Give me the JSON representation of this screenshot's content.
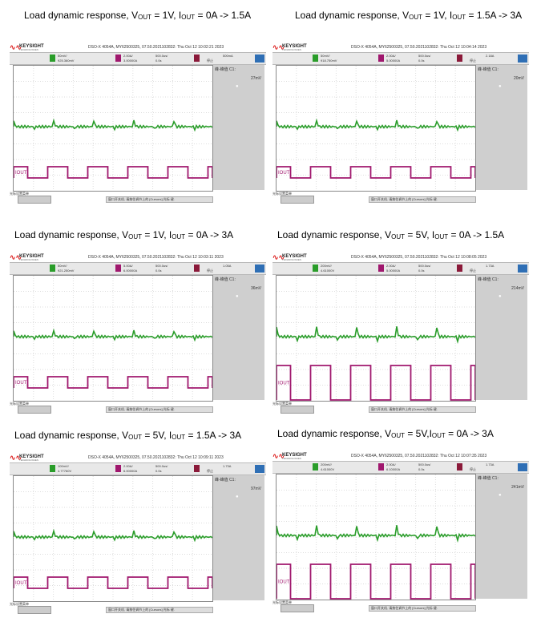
{
  "panels": [
    {
      "title_prefix": "Load dynamic response, V",
      "sub1": "OUT",
      "mid": " = 1V,  I",
      "sub2": "OUT",
      "suffix": " = 0A -> 1.5A",
      "time": "Thu Oct 12 10:02:21 2023",
      "ch1": "50mV/",
      "ch1b": "925.360mV",
      "ch2": "2.00A/",
      "ch2b": "3.00000A",
      "h": "500.0us/",
      "hb": "0.0s",
      "trig": "500mA",
      "side_head": "峰-峰值 C1:",
      "side_val": "27mV",
      "foot_left": "光标设置菜单",
      "foot_mid": "窗口开关机, 请按住调节上的 [Cursors] 光标 键."
    },
    {
      "title_prefix": "Load dynamic response, V",
      "sub1": "OUT",
      "mid": " = 1V,  I",
      "sub2": "OUT",
      "suffix": " = 1.5A -> 3A",
      "time": "Thu Oct 12 10:04:14 2023",
      "ch1": "50mV/",
      "ch1b": "918.750mV",
      "ch2": "2.00A/",
      "ch2b": "5.00000A",
      "h": "500.0us/",
      "hb": "0.0s",
      "trig": "2.18A",
      "side_head": "峰-峰值 C1:",
      "side_val": "20mV",
      "foot_left": "光标设置菜单",
      "foot_mid": "窗口开关机, 请按住调节上的 [Cursors] 光标 键."
    },
    {
      "title_prefix": "Load dynamic response, V",
      "sub1": "OUT",
      "mid": " = 1V,  I",
      "sub2": "OUT",
      "suffix": " = 0A -> 3A",
      "time": "Thu Oct 12 10:03:11 2023",
      "ch1": "50mV/",
      "ch1b": "921.250mV",
      "ch2": "5.00A/",
      "ch2b": "6.00000A",
      "h": "500.0us/",
      "hb": "0.0s",
      "trig": "1.05A",
      "side_head": "峰-峰值 C1:",
      "side_val": "36mV",
      "foot_left": "光标设置菜单",
      "foot_mid": "窗口开关机, 请按住调节上的 [Cursors] 光标 键."
    },
    {
      "title_prefix": "Load dynamic response, V",
      "sub1": "OUT",
      "mid": " = 5V,  I",
      "sub2": "OUT",
      "suffix": " = 0A -> 1.5A",
      "time": "Thu Oct 12 10:08:05 2023",
      "ch1": "200mV/",
      "ch1b": "4.61000V",
      "ch2": "2.00A/",
      "ch2b": "5.00000A",
      "h": "500.0us/",
      "hb": "0.0s",
      "trig": "1.73A",
      "side_head": "峰-峰值 C1:",
      "side_val": "214mV",
      "foot_left": "光标设置菜单",
      "foot_mid": "窗口开关机, 请按住调节上的 [Cursors] 光标 键."
    },
    {
      "title_prefix": "Load dynamic response, V",
      "sub1": "OUT",
      "mid": " = 5V,  I",
      "sub2": "OUT",
      "suffix": " = 1.5A -> 3A",
      "time": "Thu Oct 12 10:09:11 2023",
      "ch1": "100mV/",
      "ch1b": "4.77760V",
      "ch2": "2.00A/",
      "ch2b": "6.00000A",
      "h": "500.0us/",
      "hb": "0.0s",
      "trig": "1.73A",
      "side_head": "峰-峰值 C1:",
      "side_val": "97mV",
      "foot_left": "光标设置菜单",
      "foot_mid": "窗口开关机, 请按住调节上的 [Cursors] 光标 键."
    },
    {
      "title_prefix": "Load dynamic response, V",
      "sub1": "OUT",
      "mid": " = 5V,I",
      "sub2": "OUT",
      "suffix": " = 0A -> 3A",
      "time": "Thu Oct 12 10:07:35 2023",
      "ch1": "200mV/",
      "ch1b": "4.61000V",
      "ch2": "2.00A/",
      "ch2b": "6.10000A",
      "h": "500.0us/",
      "hb": "0.0s",
      "trig": "1.73A",
      "side_head": "峰-峰值 C1:",
      "side_val": "241mV",
      "foot_left": "光标设置菜单",
      "foot_mid": "窗口开关机, 请按住调节上的 [Cursors] 光标 键."
    }
  ],
  "common": {
    "brand": "KEYSIGHT",
    "brand_sub": "TECHNOLOGIES",
    "model": "DSO-X 4054A, MY62500325, 07.50.2021102832:",
    "iout_label": "IOUT",
    "ch1_color": "#2a9d2a",
    "ch2_color": "#a0186e",
    "stop_label": "停止"
  }
}
